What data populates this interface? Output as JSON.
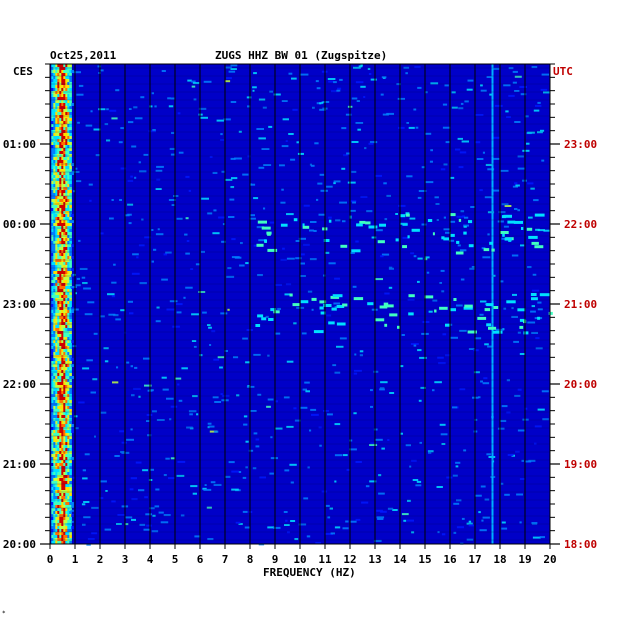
{
  "chart_data": {
    "type": "heatmap",
    "header": {
      "date": "Oct25,2011",
      "station": "ZUGS HHZ BW 01 (Zugspitze)"
    },
    "left_timezone": "CES",
    "right_timezone": "UTC",
    "xlabel": "FREQUENCY (HZ)",
    "xlim": [
      0,
      20
    ],
    "x_ticks": [
      "0",
      "1",
      "2",
      "3",
      "4",
      "5",
      "6",
      "7",
      "8",
      "9",
      "10",
      "11",
      "12",
      "13",
      "14",
      "15",
      "16",
      "17",
      "18",
      "19",
      "20"
    ],
    "left_time_ticks": [
      "01:00",
      "00:00",
      "23:00",
      "22:00",
      "21:00",
      "20:00"
    ],
    "right_time_ticks": [
      "23:00",
      "22:00",
      "21:00",
      "20:00",
      "19:00",
      "18:00"
    ],
    "time_range_utc": [
      "18:00",
      "24:00"
    ],
    "colors": {
      "background": "#0000c8",
      "low": "#0000b4",
      "mid": "#00c8ff",
      "high": "#c80000",
      "utc_text": "#c00000"
    },
    "features": {
      "strong_low_frequency_band_hz": [
        0.1,
        0.8
      ],
      "persistent_spectral_line_hz": 17.7,
      "broadband_burst_times_cet": [
        "00:00",
        "23:00"
      ]
    },
    "footnote": "*"
  }
}
